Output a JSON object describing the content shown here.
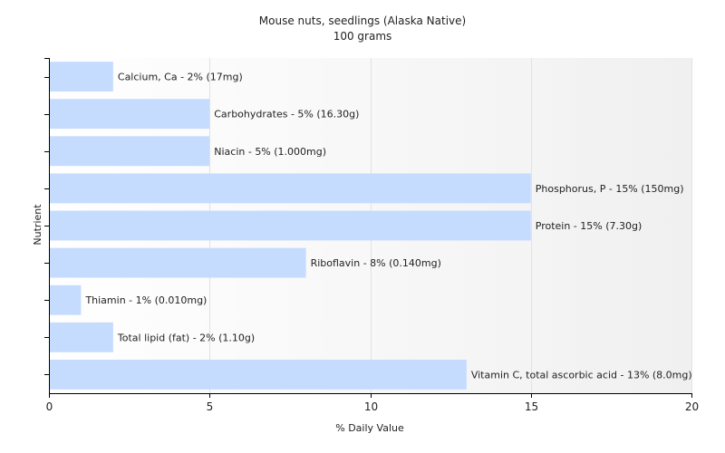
{
  "chart_data": {
    "type": "bar",
    "orientation": "horizontal",
    "title": "Mouse nuts, seedlings (Alaska Native)",
    "subtitle": "100 grams",
    "xlabel": "% Daily Value",
    "ylabel": "Nutrient",
    "xlim": [
      0,
      20
    ],
    "xticks": [
      0,
      5,
      10,
      15,
      20
    ],
    "grid": true,
    "bar_color": "#c6dcff",
    "categories": [
      "Calcium, Ca",
      "Carbohydrates",
      "Niacin",
      "Phosphorus, P",
      "Protein",
      "Riboflavin",
      "Thiamin",
      "Total lipid (fat)",
      "Vitamin C, total ascorbic acid"
    ],
    "values": [
      2,
      5,
      5,
      15,
      15,
      8,
      1,
      2,
      13
    ],
    "data_labels": [
      "Calcium, Ca - 2% (17mg)",
      "Carbohydrates - 5% (16.30g)",
      "Niacin - 5% (1.000mg)",
      "Phosphorus, P - 15% (150mg)",
      "Protein - 15% (7.30g)",
      "Riboflavin - 8% (0.140mg)",
      "Thiamin - 1% (0.010mg)",
      "Total lipid (fat) - 2% (1.10g)",
      "Vitamin C, total ascorbic acid - 13% (8.0mg)"
    ]
  }
}
